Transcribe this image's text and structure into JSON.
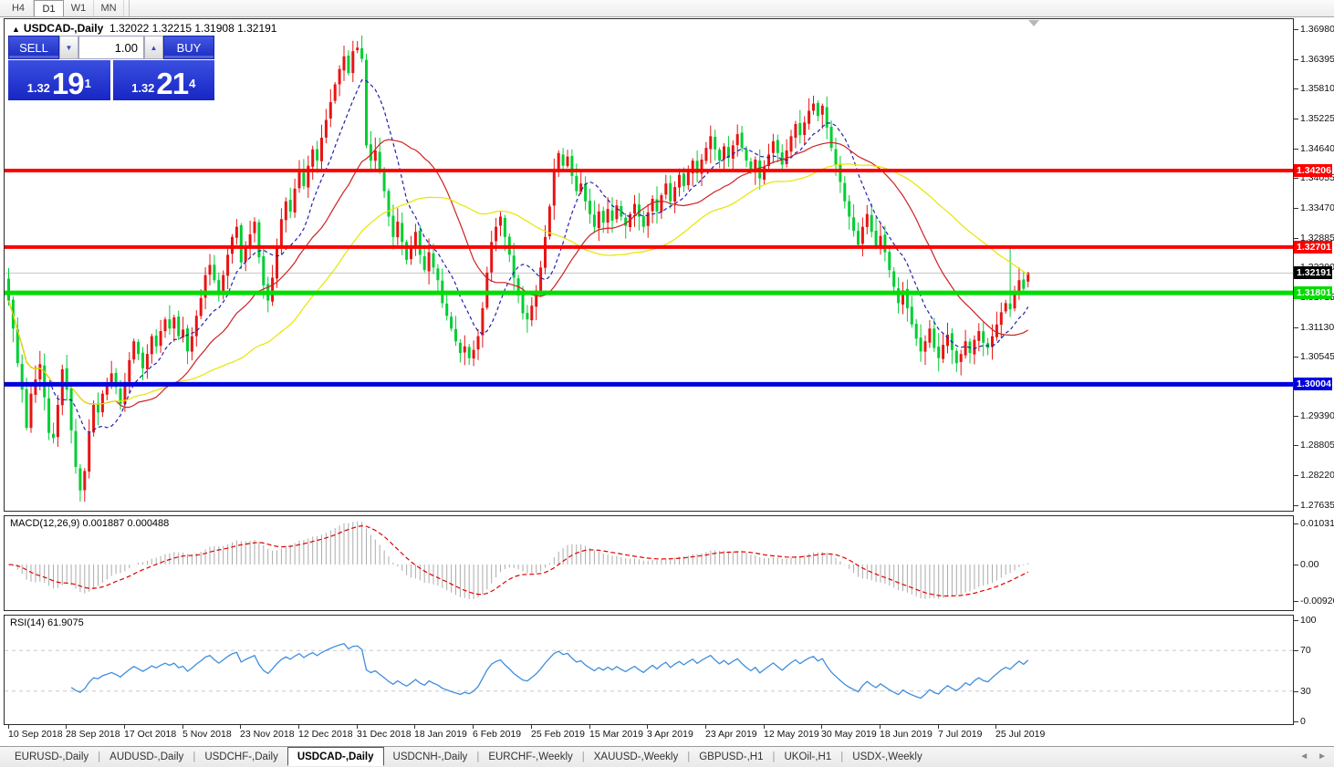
{
  "toolbar": {
    "timeframes": [
      {
        "label": "H4",
        "active": false
      },
      {
        "label": "D1",
        "active": true
      },
      {
        "label": "W1",
        "active": false
      },
      {
        "label": "MN",
        "active": false
      }
    ]
  },
  "chart": {
    "collapse_marker": "▲",
    "symbol_title": "USDCAD-,Daily",
    "ohlc_string": "1.32022 1.32215 1.31908 1.32191"
  },
  "trade_panel": {
    "sell_label": "SELL",
    "buy_label": "BUY",
    "volume": "1.00",
    "spinner_down_icon": "▼",
    "spinner_up_icon": "▲",
    "sell_price_small": "1.32",
    "sell_price_big": "19",
    "sell_price_sup": "1",
    "buy_price_small": "1.32",
    "buy_price_big": "21",
    "buy_price_sup": "4"
  },
  "indicators": {
    "macd_label": "MACD(12,26,9) 0.001887 0.000488",
    "rsi_label": "RSI(14) 61.9075"
  },
  "axes": {
    "price_ticks": [
      "1.36980",
      "1.36395",
      "1.35810",
      "1.35225",
      "1.34640",
      "1.34055",
      "1.33470",
      "1.32885",
      "1.32300",
      "1.31715",
      "1.31130",
      "1.30545",
      "1.29390",
      "1.28805",
      "1.28220",
      "1.27635"
    ],
    "macd_ticks": [
      {
        "label": "0.010311",
        "value": 0.010311
      },
      {
        "label": "0.00",
        "value": 0
      },
      {
        "label": "-0.009203",
        "value": -0.009203
      }
    ],
    "rsi_ticks": [
      {
        "label": "100",
        "value": 100
      },
      {
        "label": "70",
        "value": 70
      },
      {
        "label": "30",
        "value": 30
      },
      {
        "label": "0",
        "value": 0
      }
    ],
    "dates": [
      "10 Sep 2018",
      "28 Sep 2018",
      "17 Oct 2018",
      "5 Nov 2018",
      "23 Nov 2018",
      "12 Dec 2018",
      "31 Dec 2018",
      "18 Jan 2019",
      "6 Feb 2019",
      "25 Feb 2019",
      "15 Mar 2019",
      "3 Apr 2019",
      "23 Apr 2019",
      "12 May 2019",
      "30 May 2019",
      "18 Jun 2019",
      "7 Jul 2019",
      "25 Jul 2019"
    ]
  },
  "levels": [
    {
      "price": 1.34206,
      "label": "1.34206",
      "color": "#FF0000",
      "thickness": 4,
      "kind": "resistance"
    },
    {
      "price": 1.32701,
      "label": "1.32701",
      "color": "#FF0000",
      "thickness": 4,
      "kind": "resistance"
    },
    {
      "price": 1.31801,
      "label": "1.31801",
      "color": "#00DD00",
      "thickness": 5,
      "kind": "support"
    },
    {
      "price": 1.30004,
      "label": "1.30004",
      "color": "#0000DD",
      "thickness": 5,
      "kind": "support"
    }
  ],
  "current_price": {
    "value": 1.32191,
    "label": "1.32191",
    "line_color": "#C4C4C4",
    "badge_color": "#000000"
  },
  "chart_data": {
    "type": "candlestick",
    "symbol": "USDCAD",
    "timeframe": "Daily",
    "title": "USDCAD-,Daily",
    "ylim": [
      1.2752,
      1.3718
    ],
    "grid": false,
    "bull_color": "#E81414",
    "bear_color": "#00CE32",
    "ma_lines": [
      {
        "period": 10,
        "color": "#2020B0",
        "style": "dashed"
      },
      {
        "period": 25,
        "color": "#D02020",
        "style": "solid"
      },
      {
        "period": 50,
        "color": "#E6E600",
        "style": "solid"
      }
    ],
    "date_tick_every": 13,
    "closes": [
      1.3165,
      1.311,
      1.3042,
      1.299,
      1.2915,
      1.2982,
      1.301,
      1.304,
      1.2975,
      1.2905,
      1.2895,
      1.296,
      1.303,
      1.299,
      1.291,
      1.2838,
      1.2792,
      1.283,
      1.2905,
      1.296,
      1.2945,
      1.2982,
      1.3,
      1.3022,
      1.2995,
      1.2962,
      1.3005,
      1.3048,
      1.3085,
      1.306,
      1.3032,
      1.306,
      1.3095,
      1.3075,
      1.3105,
      1.3128,
      1.311,
      1.3132,
      1.3095,
      1.3108,
      1.3065,
      1.3095,
      1.3135,
      1.317,
      1.3215,
      1.3235,
      1.3205,
      1.318,
      1.3215,
      1.3255,
      1.329,
      1.331,
      1.324,
      1.327,
      1.3295,
      1.332,
      1.325,
      1.3195,
      1.3165,
      1.321,
      1.327,
      1.3325,
      1.336,
      1.334,
      1.3385,
      1.342,
      1.339,
      1.343,
      1.3462,
      1.344,
      1.3485,
      1.352,
      1.3555,
      1.359,
      1.362,
      1.3645,
      1.3612,
      1.3655,
      1.3662,
      1.364,
      1.347,
      1.344,
      1.346,
      1.342,
      1.338,
      1.333,
      1.329,
      1.332,
      1.328,
      1.3245,
      1.327,
      1.33,
      1.3255,
      1.3225,
      1.326,
      1.323,
      1.3205,
      1.316,
      1.3135,
      1.311,
      1.3085,
      1.3062,
      1.3075,
      1.3052,
      1.3068,
      1.3095,
      1.315,
      1.322,
      1.328,
      1.331,
      1.333,
      1.329,
      1.3255,
      1.321,
      1.3175,
      1.314,
      1.3128,
      1.3155,
      1.3185,
      1.323,
      1.329,
      1.335,
      1.342,
      1.3455,
      1.343,
      1.3448,
      1.341,
      1.338,
      1.3395,
      1.336,
      1.3335,
      1.331,
      1.334,
      1.3318,
      1.3345,
      1.3322,
      1.3352,
      1.333,
      1.3312,
      1.3335,
      1.3355,
      1.333,
      1.331,
      1.3338,
      1.3365,
      1.334,
      1.3372,
      1.3395,
      1.336,
      1.3388,
      1.3412,
      1.339,
      1.3418,
      1.344,
      1.3415,
      1.3442,
      1.3465,
      1.3488,
      1.3462,
      1.344,
      1.3468,
      1.3445,
      1.347,
      1.3492,
      1.3465,
      1.344,
      1.3418,
      1.3442,
      1.3405,
      1.3428,
      1.3452,
      1.3478,
      1.3455,
      1.3432,
      1.346,
      1.3488,
      1.3512,
      1.349,
      1.3515,
      1.3538,
      1.3552,
      1.3528,
      1.3548,
      1.3505,
      1.3465,
      1.3432,
      1.3398,
      1.336,
      1.333,
      1.3302,
      1.3275,
      1.331,
      1.3335,
      1.33,
      1.327,
      1.3292,
      1.326,
      1.3225,
      1.3192,
      1.316,
      1.3185,
      1.315,
      1.3118,
      1.309,
      1.3065,
      1.3085,
      1.311,
      1.3072,
      1.3052,
      1.3078,
      1.3098,
      1.3068,
      1.3042,
      1.306,
      1.3085,
      1.3062,
      1.3088,
      1.3105,
      1.3082,
      1.3072,
      1.3095,
      1.3118,
      1.3142,
      1.316,
      1.3148,
      1.3178,
      1.3205,
      1.3188,
      1.32191
    ],
    "overrides": {
      "0": {
        "open": 1.3208
      },
      "16": {
        "low": 1.277
      },
      "78": {
        "high": 1.3675
      },
      "213": {
        "low": 1.3018
      },
      "224": {
        "high": 1.3268
      },
      "228": {
        "open": 1.32022,
        "high": 1.32215,
        "low": 1.31908,
        "close": 1.32191
      }
    },
    "macd": {
      "fast": 12,
      "slow": 26,
      "signal": 9,
      "main_value": 0.001887,
      "signal_value": 0.000488,
      "hist_color": "#ABABAB",
      "signal_color": "#E00000",
      "ylim": [
        -0.01159,
        0.01227
      ]
    },
    "rsi": {
      "period": 14,
      "value": 61.9075,
      "color": "#3E8EDE",
      "levels": [
        70,
        30
      ],
      "ylim": [
        0,
        100
      ]
    }
  },
  "tabs": {
    "items": [
      {
        "label": "EURUSD-,Daily",
        "active": false
      },
      {
        "label": "AUDUSD-,Daily",
        "active": false
      },
      {
        "label": "USDCHF-,Daily",
        "active": false
      },
      {
        "label": "USDCAD-,Daily",
        "active": true
      },
      {
        "label": "USDCNH-,Daily",
        "active": false
      },
      {
        "label": "EURCHF-,Weekly",
        "active": false
      },
      {
        "label": "XAUUSD-,Weekly",
        "active": false
      },
      {
        "label": "GBPUSD-,H1",
        "active": false
      },
      {
        "label": "UKOil-,H1",
        "active": false
      },
      {
        "label": "USDX-,Weekly",
        "active": false
      }
    ],
    "scroll_left_icon": "◄",
    "scroll_right_icon": "►"
  }
}
